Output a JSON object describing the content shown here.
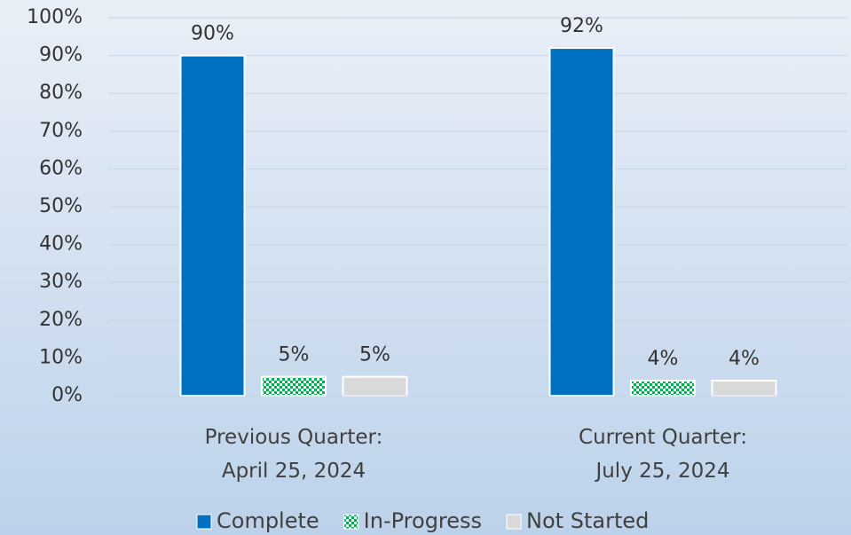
{
  "chart_data": {
    "type": "bar",
    "categories": [
      "Previous Quarter:\nApril 25, 2024",
      "Current Quarter:\nJuly 25, 2024"
    ],
    "series": [
      {
        "name": "Complete",
        "color": "#0070c0",
        "values": [
          90,
          92
        ],
        "value_labels": [
          "90%",
          "92%"
        ]
      },
      {
        "name": "In-Progress",
        "color": "#00b050",
        "pattern": "checkered",
        "values": [
          5,
          4
        ],
        "value_labels": [
          "5%",
          "4%"
        ]
      },
      {
        "name": "Not Started",
        "color": "#d9d9d9",
        "values": [
          5,
          4
        ],
        "value_labels": [
          "5%",
          "4%"
        ]
      }
    ],
    "ylim": [
      0,
      100
    ],
    "yticks": [
      {
        "value": 0,
        "label": "0%"
      },
      {
        "value": 10,
        "label": "10%"
      },
      {
        "value": 20,
        "label": "20%"
      },
      {
        "value": 30,
        "label": "30%"
      },
      {
        "value": 40,
        "label": "40%"
      },
      {
        "value": 50,
        "label": "50%"
      },
      {
        "value": 60,
        "label": "60%"
      },
      {
        "value": 70,
        "label": "70%"
      },
      {
        "value": 80,
        "label": "80%"
      },
      {
        "value": 90,
        "label": "90%"
      },
      {
        "value": 100,
        "label": "100%"
      }
    ],
    "grid": true,
    "legend": "bottom"
  }
}
